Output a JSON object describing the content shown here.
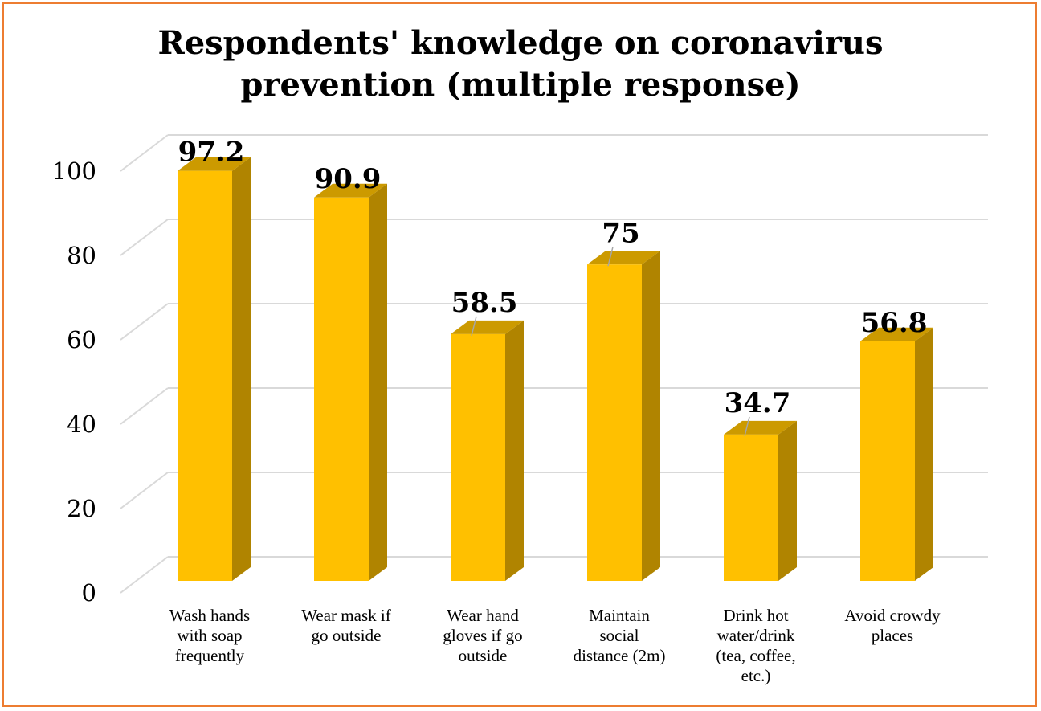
{
  "chart_data": {
    "type": "bar",
    "title_lines": [
      "Respondents' knowledge on coronavirus",
      "prevention (multiple response)"
    ],
    "categories": [
      [
        "Wash hands",
        "with soap",
        "frequently"
      ],
      [
        "Wear mask if",
        "go outside"
      ],
      [
        "Wear hand",
        "gloves if go",
        "outside"
      ],
      [
        "Maintain",
        "social",
        "distance (2m)"
      ],
      [
        "Drink hot",
        "water/drink",
        "(tea, coffee,",
        "etc.)"
      ],
      [
        "Avoid crowdy",
        "places"
      ]
    ],
    "values": [
      97.2,
      90.9,
      58.5,
      75,
      34.7,
      56.8
    ],
    "value_labels": [
      "97.2",
      "90.9",
      "58.5",
      "75",
      "34.7",
      "56.8"
    ],
    "ylim": [
      0,
      100
    ],
    "yticks": [
      0,
      20,
      40,
      60,
      80,
      100
    ],
    "grid": true,
    "legend": "none",
    "style": "3d-column",
    "colors": {
      "bar_front": "#FFC000",
      "bar_side": "#B08400",
      "bar_top": "#CC9A00",
      "grid": "#D9D9D9",
      "frame": "#ED7D31"
    }
  }
}
